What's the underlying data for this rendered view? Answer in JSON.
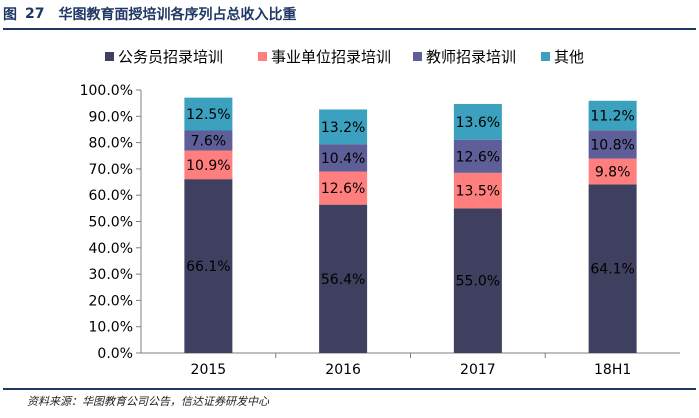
{
  "header": {
    "label": "图",
    "number": "27",
    "title": "华图教育面授培训各序列占总收入比重"
  },
  "footer": {
    "source": "资料来源：华图教育公司公告，信达证券研发中心"
  },
  "chart_data": {
    "type": "bar",
    "stacked": true,
    "categories": [
      "2015",
      "2016",
      "2017",
      "18H1"
    ],
    "series": [
      {
        "name": "公务员招录培训",
        "color": "#3f3f5f",
        "values": [
          66.1,
          56.4,
          55.0,
          64.1
        ],
        "labels": [
          "66.1%",
          "56.4%",
          "55.0%",
          "64.1%"
        ]
      },
      {
        "name": "事业单位招录培训",
        "color": "#ff7e7e",
        "values": [
          10.9,
          12.6,
          13.5,
          9.8
        ],
        "labels": [
          "10.9%",
          "12.6%",
          "13.5%",
          "9.8%"
        ]
      },
      {
        "name": "教师招录培训",
        "color": "#5e5f98",
        "values": [
          7.6,
          10.4,
          12.6,
          10.8
        ],
        "labels": [
          "7.6%",
          "10.4%",
          "12.6%",
          "10.8%"
        ]
      },
      {
        "name": "其他",
        "color": "#3ba1bf",
        "values": [
          12.5,
          13.2,
          13.6,
          11.2
        ],
        "labels": [
          "12.5%",
          "13.2%",
          "13.6%",
          "11.2%"
        ]
      }
    ],
    "ylim": [
      0,
      100
    ],
    "yticks": [
      "0.0%",
      "10.0%",
      "20.0%",
      "30.0%",
      "40.0%",
      "50.0%",
      "60.0%",
      "70.0%",
      "80.0%",
      "90.0%",
      "100.0%"
    ],
    "legend": "top",
    "grid": false
  }
}
